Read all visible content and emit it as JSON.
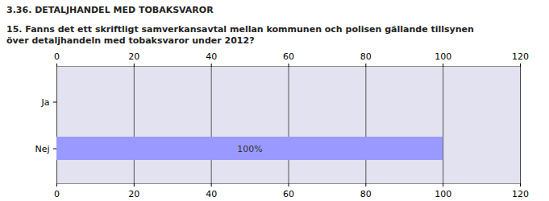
{
  "chart_data": {
    "type": "bar",
    "orientation": "horizontal",
    "title": "3.36. DETALJHANDEL MED TOBAKSVAROR",
    "subtitle": "15. Fanns det ett skriftligt samverkansavtal mellan kommunen och polisen gällande tillsynen över detaljhandeln med tobaksvaror under 2012?",
    "categories": [
      "Ja",
      "Nej"
    ],
    "values": [
      0,
      100
    ],
    "value_labels": [
      null,
      "100%"
    ],
    "data_labels": true,
    "color": "#9999ff",
    "xlim": [
      0,
      120
    ],
    "xticks": [
      0,
      20,
      40,
      60,
      80,
      100,
      120
    ],
    "grid": true
  }
}
